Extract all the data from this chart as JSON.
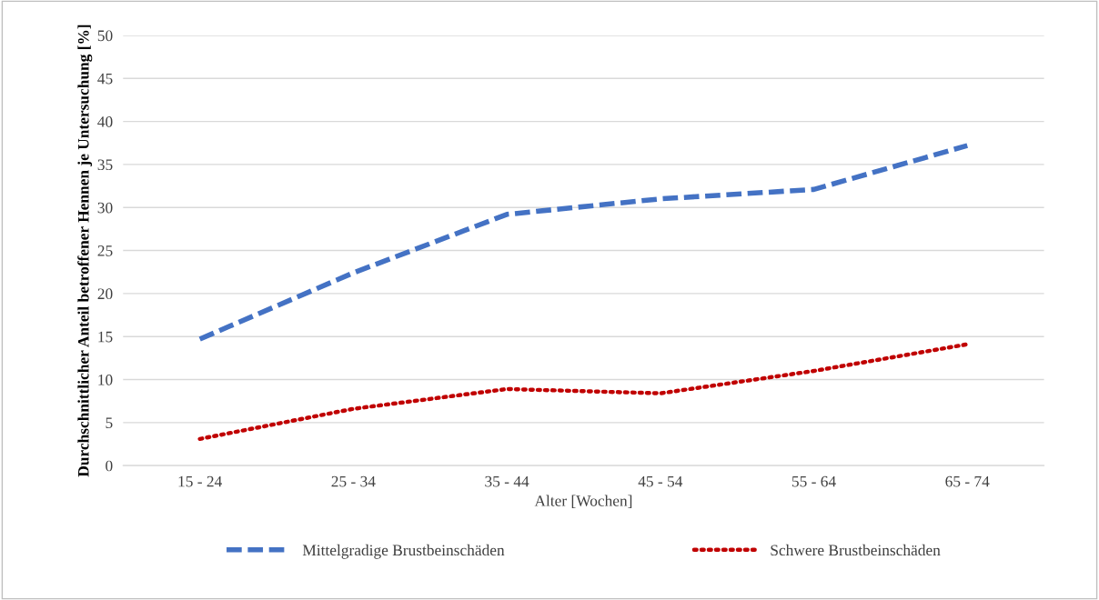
{
  "chart_data": {
    "type": "line",
    "xlabel": "Alter [Wochen]",
    "ylabel": "Durchschnittlicher Anteil betroffener Hennen je Untersuchung [%]",
    "categories": [
      "15 - 24",
      "25 - 34",
      "35 - 44",
      "45 - 54",
      "55 - 64",
      "65 - 74"
    ],
    "series": [
      {
        "name": "Mittelgradige Brustbeinschäden",
        "color": "#4472c4",
        "line_style": "dashed",
        "values": [
          14.7,
          22.4,
          29.2,
          31.0,
          32.1,
          37.2
        ]
      },
      {
        "name": "Schwere Brustbeinschäden",
        "color": "#c00000",
        "line_style": "dotted",
        "values": [
          3.1,
          6.6,
          8.9,
          8.4,
          11.0,
          14.1
        ]
      }
    ],
    "ylim": [
      0,
      50
    ],
    "yticks": [
      0,
      5,
      10,
      15,
      20,
      25,
      30,
      35,
      40,
      45,
      50
    ],
    "grid": "y",
    "legend": "bottom",
    "marker": "none"
  }
}
